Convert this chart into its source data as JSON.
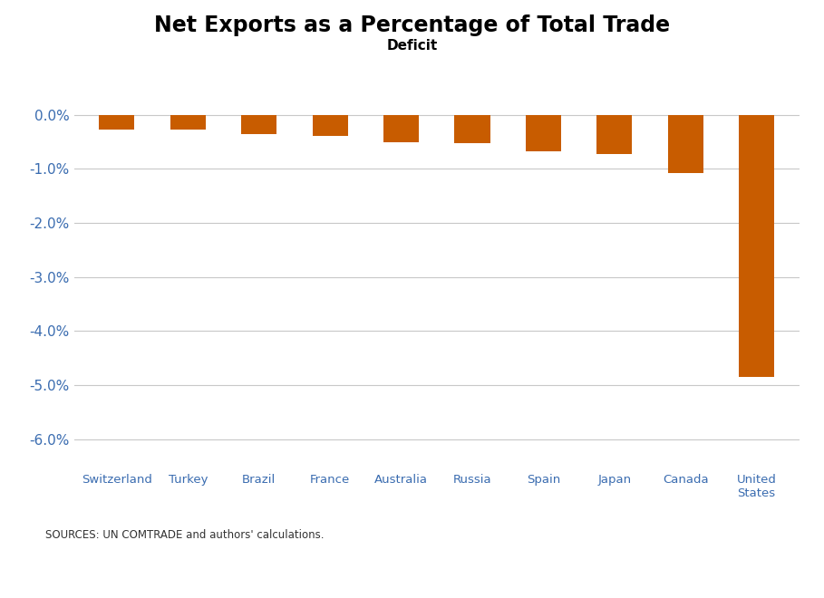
{
  "title": "Net Exports as a Percentage of Total Trade",
  "subtitle": "Deficit",
  "categories": [
    "Switzerland",
    "Turkey",
    "Brazil",
    "France",
    "Australia",
    "Russia",
    "Spain",
    "Japan",
    "Canada",
    "United\nStates"
  ],
  "values": [
    -0.27,
    -0.28,
    -0.36,
    -0.39,
    -0.51,
    -0.53,
    -0.68,
    -0.72,
    -1.08,
    -4.85
  ],
  "bar_color": "#C85C00",
  "background_color": "#FFFFFF",
  "ylim": [
    -6.5,
    0.35
  ],
  "yticks": [
    0.0,
    -1.0,
    -2.0,
    -3.0,
    -4.0,
    -5.0,
    -6.0
  ],
  "source_text": "SOURCES: UN COMTRADE and authors' calculations.",
  "footer_bg": "#1C3A5E",
  "footer_text_color": "#FFFFFF",
  "grid_color": "#C8C8C8",
  "ytick_color": "#3A6CB0",
  "xtick_color": "#3A6CB0",
  "title_fontsize": 17,
  "subtitle_fontsize": 11,
  "tick_fontsize": 11,
  "label_fontsize": 9.5
}
